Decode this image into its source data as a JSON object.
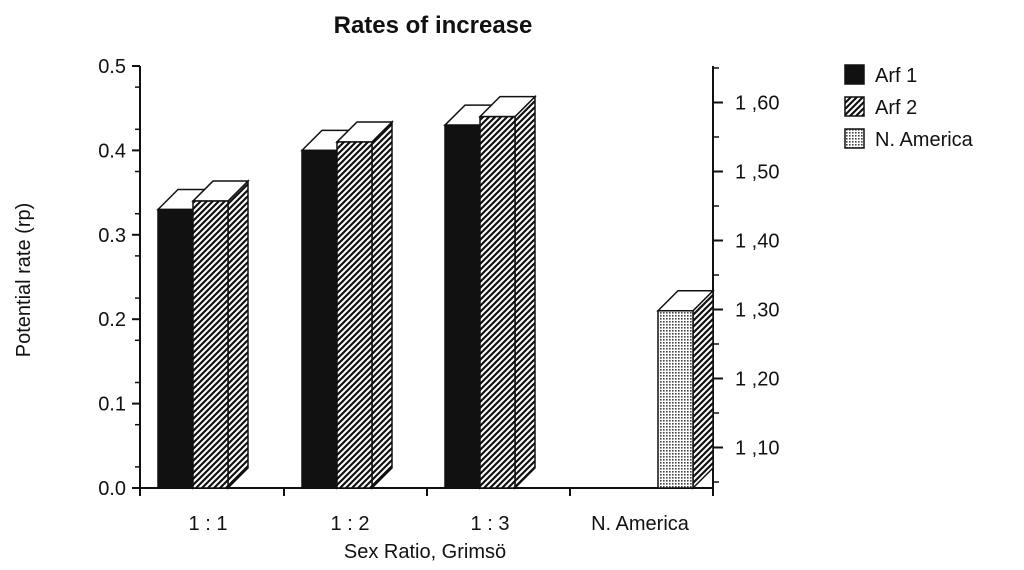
{
  "chart_data": {
    "type": "bar",
    "title": "Rates of increase",
    "xlabel": "Sex Ratio, Grimsö",
    "ylabel": "Potential rate (rp)",
    "categories": [
      "1 : 1",
      "1 : 2",
      "1 : 3",
      "N. America"
    ],
    "series": [
      {
        "name": "Arf 1",
        "values": [
          0.33,
          0.4,
          0.43,
          null
        ],
        "color": "#111111",
        "fill": "solid"
      },
      {
        "name": "Arf 2",
        "values": [
          0.34,
          0.41,
          0.44,
          null
        ],
        "color": "#111111",
        "fill": "diagonal-hatch"
      },
      {
        "name": "N. America",
        "values": [
          null,
          null,
          null,
          0.21
        ],
        "color": "#bbbbbb",
        "fill": "dotted"
      }
    ],
    "ylim": [
      0,
      0.5
    ],
    "yticks": [
      "0.0",
      "0.1",
      "0.2",
      "0.3",
      "0.4",
      "0.5"
    ],
    "y2ticks": [
      "1 ,10",
      "1 ,20",
      "1 ,30",
      "1 ,40",
      "1 ,50",
      "1 ,60"
    ],
    "y2_values": [
      1.1,
      1.2,
      1.3,
      1.4,
      1.5,
      1.6
    ],
    "legend_position": "top-right",
    "style": "3d-bars",
    "grid": false
  }
}
